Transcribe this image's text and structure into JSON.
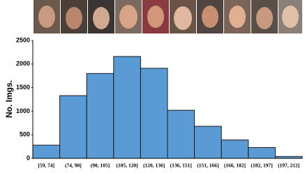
{
  "chart_data": {
    "type": "bar",
    "y_label": "No. Imgs.",
    "categories": [
      "[59, 74]",
      "(74, 90]",
      "(90, 105]",
      "(105, 120]",
      "(120, 136]",
      "(136, 151]",
      "(151, 166]",
      "(166, 182]",
      "(182, 197]",
      "(197, 212]"
    ],
    "values": [
      280,
      1330,
      1800,
      2160,
      1910,
      1020,
      680,
      390,
      230,
      40
    ],
    "color": "#5b9bd5",
    "ylim": [
      0,
      2500
    ],
    "yticks": [
      0,
      500,
      1000,
      1500,
      2000,
      2500
    ],
    "grid": false
  }
}
